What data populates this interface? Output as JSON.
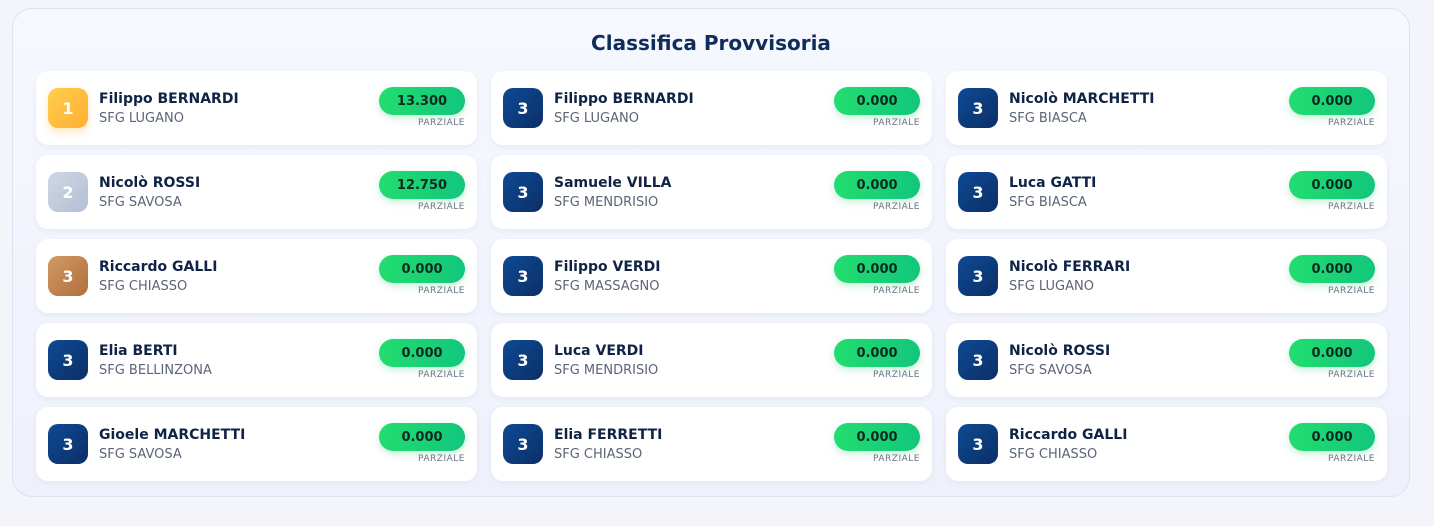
{
  "title": "Classifica Provvisoria",
  "score_label": "PARZIALE",
  "entries": [
    {
      "rank": "1",
      "medal": "gold",
      "name": "Filippo BERNARDI",
      "club": "SFG LUGANO",
      "score": "13.300"
    },
    {
      "rank": "2",
      "medal": "silver",
      "name": "Nicolò ROSSI",
      "club": "SFG SAVOSA",
      "score": "12.750"
    },
    {
      "rank": "3",
      "medal": "bronze",
      "name": "Riccardo GALLI",
      "club": "SFG CHIASSO",
      "score": "0.000"
    },
    {
      "rank": "3",
      "medal": "navy",
      "name": "Elia BERTI",
      "club": "SFG BELLINZONA",
      "score": "0.000"
    },
    {
      "rank": "3",
      "medal": "navy",
      "name": "Gioele MARCHETTI",
      "club": "SFG SAVOSA",
      "score": "0.000"
    },
    {
      "rank": "3",
      "medal": "navy",
      "name": "Filippo BERNARDI",
      "club": "SFG LUGANO",
      "score": "0.000"
    },
    {
      "rank": "3",
      "medal": "navy",
      "name": "Samuele VILLA",
      "club": "SFG MENDRISIO",
      "score": "0.000"
    },
    {
      "rank": "3",
      "medal": "navy",
      "name": "Filippo VERDI",
      "club": "SFG MASSAGNO",
      "score": "0.000"
    },
    {
      "rank": "3",
      "medal": "navy",
      "name": "Luca VERDI",
      "club": "SFG MENDRISIO",
      "score": "0.000"
    },
    {
      "rank": "3",
      "medal": "navy",
      "name": "Elia FERRETTI",
      "club": "SFG CHIASSO",
      "score": "0.000"
    },
    {
      "rank": "3",
      "medal": "navy",
      "name": "Nicolò MARCHETTI",
      "club": "SFG BIASCA",
      "score": "0.000"
    },
    {
      "rank": "3",
      "medal": "navy",
      "name": "Luca GATTI",
      "club": "SFG BIASCA",
      "score": "0.000"
    },
    {
      "rank": "3",
      "medal": "navy",
      "name": "Nicolò FERRARI",
      "club": "SFG LUGANO",
      "score": "0.000"
    },
    {
      "rank": "3",
      "medal": "navy",
      "name": "Nicolò ROSSI",
      "club": "SFG SAVOSA",
      "score": "0.000"
    },
    {
      "rank": "3",
      "medal": "navy",
      "name": "Riccardo GALLI",
      "club": "SFG CHIASSO",
      "score": "0.000"
    }
  ]
}
